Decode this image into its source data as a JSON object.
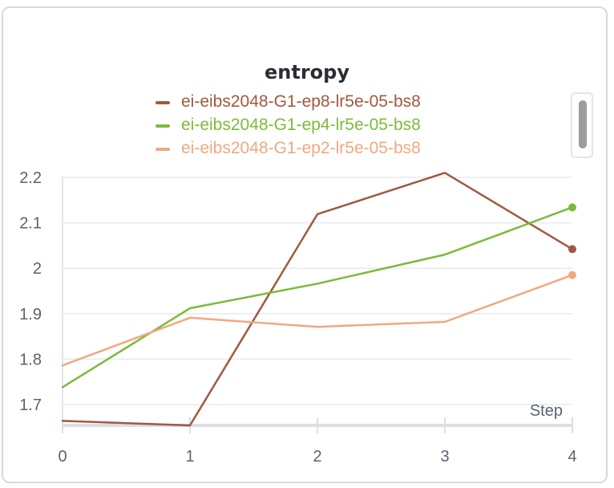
{
  "chart_data": {
    "type": "line",
    "title": "entropy",
    "xlabel": "Step",
    "ylabel": "",
    "x": [
      0,
      1,
      2,
      3,
      4
    ],
    "xlim": [
      0,
      4
    ],
    "ylim": [
      1.65,
      2.2
    ],
    "yticks": [
      "1.7",
      "1.8",
      "1.9",
      "2",
      "2.1",
      "2.2"
    ],
    "xticks": [
      "0",
      "1",
      "2",
      "3",
      "4"
    ],
    "grid": true,
    "legend_position": "top",
    "series": [
      {
        "name": "ei-eibs2048-G1-ep8-lr5e-05-bs8",
        "color": "#a0593f",
        "values": [
          1.664,
          1.654,
          2.119,
          2.21,
          2.042
        ]
      },
      {
        "name": "ei-eibs2048-G1-ep4-lr5e-05-bs8",
        "color": "#7cbb3a",
        "values": [
          1.738,
          1.912,
          1.966,
          2.03,
          2.134
        ]
      },
      {
        "name": "ei-eibs2048-G1-ep2-lr5e-05-bs8",
        "color": "#f1a880",
        "values": [
          1.786,
          1.891,
          1.871,
          1.882,
          1.985
        ]
      }
    ]
  }
}
